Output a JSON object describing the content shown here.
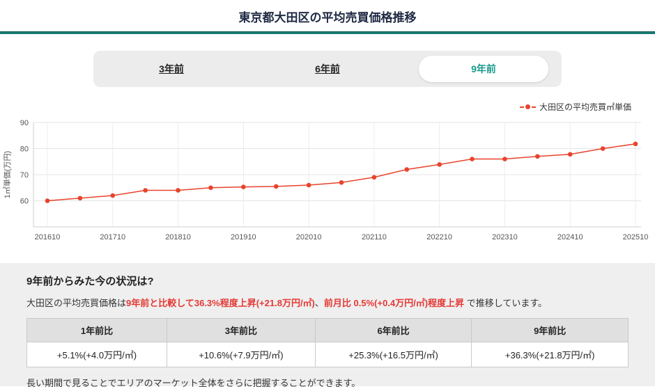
{
  "page": {
    "title": "東京都大田区の平均売買価格推移"
  },
  "colors": {
    "accent_teal": "#177b72",
    "tab_selected_text": "#189a8e",
    "line": "#e8432c",
    "highlight_red": "#e53935"
  },
  "tabs": [
    {
      "label": "3年前",
      "selected": false
    },
    {
      "label": "6年前",
      "selected": false
    },
    {
      "label": "9年前",
      "selected": true
    }
  ],
  "legend": {
    "label": "大田区の平均売買㎡単価"
  },
  "chart_data": {
    "type": "line",
    "title": "",
    "series_name": "大田区の平均売買㎡単価",
    "x": [
      "201610",
      "201704",
      "201710",
      "201804",
      "201810",
      "201904",
      "201910",
      "202004",
      "202010",
      "202104",
      "202110",
      "202204",
      "202210",
      "202304",
      "202310",
      "202404",
      "202410",
      "202504",
      "202510"
    ],
    "values": [
      60,
      61,
      62,
      64,
      64,
      65,
      65.3,
      65.5,
      66,
      67,
      69,
      72,
      73.9,
      76,
      76,
      77,
      77.8,
      80,
      81.8
    ],
    "x_tick_labels": [
      "201610",
      "201710",
      "201810",
      "201910",
      "202010",
      "202110",
      "202210",
      "202310",
      "202410",
      "202510"
    ],
    "xlabel": "",
    "ylabel": "1㎡単価(万円)",
    "ylim": [
      50,
      90
    ],
    "yticks": [
      60,
      70,
      80,
      90
    ],
    "grid": true,
    "legend_position": "top-right"
  },
  "summary": {
    "heading": "9年前からみた今の状況は?",
    "desc": {
      "pre": "大田区の平均売買価格は",
      "highlight1": "9年前と比較して36.3%程度上昇(+21.8万円/㎡)",
      "sep": "、",
      "highlight2": "前月比 0.5%(+0.4万円/㎡)程度上昇",
      "post": " で推移しています。"
    },
    "table": {
      "headers": [
        "1年前比",
        "3年前比",
        "6年前比",
        "9年前比"
      ],
      "values": [
        "+5.1%(+4.0万円/㎡)",
        "+10.6%(+7.9万円/㎡)",
        "+25.3%(+16.5万円/㎡)",
        "+36.3%(+21.8万円/㎡)"
      ]
    },
    "footer": "長い期間で見ることでエリアのマーケット全体をさらに把握することができます。"
  }
}
